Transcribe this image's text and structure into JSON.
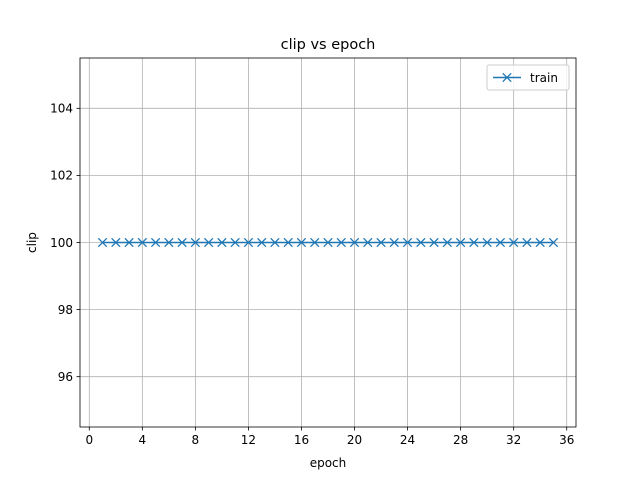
{
  "chart_data": {
    "type": "line",
    "title": "clip vs epoch",
    "xlabel": "epoch",
    "ylabel": "clip",
    "xlim": [
      -0.7,
      36.7
    ],
    "ylim": [
      94.5,
      105.5
    ],
    "xticks": [
      0,
      4,
      8,
      12,
      16,
      20,
      24,
      28,
      32,
      36
    ],
    "yticks": [
      96,
      98,
      100,
      102,
      104
    ],
    "grid": true,
    "legend_position": "top-right",
    "series": [
      {
        "name": "train",
        "color": "#1f77b4",
        "marker": "x",
        "x": [
          1,
          2,
          3,
          4,
          5,
          6,
          7,
          8,
          9,
          10,
          11,
          12,
          13,
          14,
          15,
          16,
          17,
          18,
          19,
          20,
          21,
          22,
          23,
          24,
          25,
          26,
          27,
          28,
          29,
          30,
          31,
          32,
          33,
          34,
          35
        ],
        "y": [
          100,
          100,
          100,
          100,
          100,
          100,
          100,
          100,
          100,
          100,
          100,
          100,
          100,
          100,
          100,
          100,
          100,
          100,
          100,
          100,
          100,
          100,
          100,
          100,
          100,
          100,
          100,
          100,
          100,
          100,
          100,
          100,
          100,
          100,
          100
        ]
      }
    ]
  }
}
